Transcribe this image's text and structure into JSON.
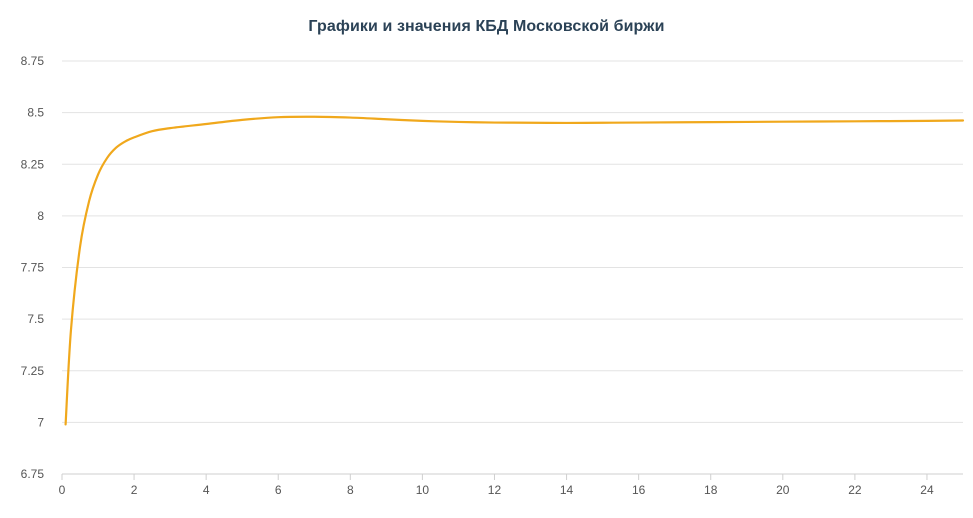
{
  "chart_data": {
    "type": "line",
    "title": "Графики и значения КБД Московской биржи",
    "xlabel": "",
    "ylabel": "",
    "xlim": [
      0,
      25
    ],
    "ylim": [
      6.75,
      8.75
    ],
    "x_ticks": [
      0,
      2,
      4,
      6,
      8,
      10,
      12,
      14,
      16,
      18,
      20,
      22,
      24
    ],
    "x_tick_labels": [
      "0",
      "2",
      "4",
      "6",
      "8",
      "10",
      "12",
      "14",
      "16",
      "18",
      "20",
      "22",
      "24"
    ],
    "y_ticks": [
      6.75,
      7,
      7.25,
      7.5,
      7.75,
      8,
      8.25,
      8.5,
      8.75
    ],
    "y_tick_labels": [
      "6.75",
      "7",
      "7.25",
      "7.5",
      "7.75",
      "8",
      "8.25",
      "8.5",
      "8.75"
    ],
    "grid": true,
    "legend": false,
    "series": [
      {
        "color": "#f0a81c",
        "x": [
          0.1,
          0.25,
          0.5,
          0.75,
          1.0,
          1.25,
          1.5,
          1.75,
          2.0,
          2.5,
          3.0,
          4.0,
          5.0,
          6.0,
          7.0,
          8.0,
          9.0,
          10.0,
          11.0,
          12.0,
          13.0,
          14.0,
          15.0,
          16.0,
          18.0,
          20.0,
          22.0,
          24.0,
          25.0
        ],
        "y": [
          6.99,
          7.45,
          7.85,
          8.07,
          8.2,
          8.28,
          8.33,
          8.36,
          8.38,
          8.41,
          8.425,
          8.445,
          8.465,
          8.478,
          8.48,
          8.476,
          8.468,
          8.46,
          8.455,
          8.452,
          8.451,
          8.45,
          8.451,
          8.452,
          8.454,
          8.456,
          8.458,
          8.46,
          8.462
        ]
      }
    ]
  }
}
